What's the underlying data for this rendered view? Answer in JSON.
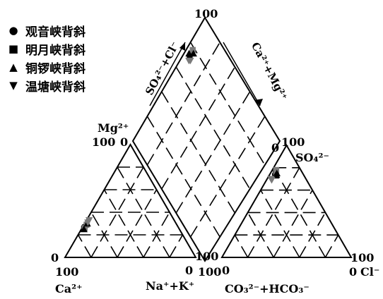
{
  "chart_data": {
    "type": "scatter",
    "chart_subtype": "piper-trilinear",
    "legend": {
      "placement": "top-left",
      "entries": [
        {
          "marker": "●",
          "label": "观音峡背斜"
        },
        {
          "marker": "■",
          "label": "明月峡背斜"
        },
        {
          "marker": "▲",
          "label": "铜锣峡背斜"
        },
        {
          "marker": "▼",
          "label": "温塘峡背斜"
        }
      ]
    },
    "triangles": {
      "cation": {
        "apex_label": "Mg²⁺",
        "left_label": "Ca²⁺",
        "right_label": "Na⁺+K⁺",
        "ticks": {
          "apex_100": "100",
          "apex_0": "0",
          "left_0": "0",
          "left_100": "100",
          "right_100": "100",
          "right_0": "0"
        }
      },
      "anion": {
        "apex_label": "SO₄²⁻",
        "left_label": "CO₃²⁻+HCO₃⁻",
        "right_label": "Cl⁻",
        "ticks": {
          "apex_100": "100",
          "apex_0": "0",
          "left_100": "100",
          "left_0": "0",
          "right_100": "100",
          "right_0": "0"
        }
      },
      "diamond": {
        "top_tick": "100",
        "upper_left_label": "SO₄²⁻+Cl⁻",
        "upper_right_label": "Ca²⁺+Mg²⁺"
      }
    },
    "series": [
      {
        "marker": "circle",
        "cation_mg_ca": [
          [
            28,
            70
          ],
          [
            27,
            72
          ]
        ],
        "anion_so4_cl": [
          [
            77,
            3
          ],
          [
            74,
            4
          ]
        ],
        "diamond_so4cl_camg": [
          [
            75,
            98
          ],
          [
            73,
            97
          ]
        ]
      },
      {
        "marker": "square",
        "cation_mg_ca": [
          [
            26,
            72
          ],
          [
            29,
            69
          ]
        ],
        "anion_so4_cl": [
          [
            76,
            4
          ],
          [
            78,
            3
          ]
        ],
        "diamond_so4cl_camg": [
          [
            76,
            97
          ],
          [
            78,
            98
          ]
        ]
      },
      {
        "marker": "triangle-up",
        "cation_mg_ca": [
          [
            25,
            73
          ],
          [
            30,
            68
          ]
        ],
        "anion_so4_cl": [
          [
            75,
            5
          ],
          [
            73,
            5
          ]
        ],
        "diamond_so4cl_camg": [
          [
            74,
            99
          ],
          [
            77,
            96
          ]
        ]
      },
      {
        "marker": "triangle-down",
        "cation_mg_ca": [
          [
            33,
            65
          ],
          [
            31,
            67
          ]
        ],
        "anion_so4_cl": [
          [
            69,
            4
          ],
          [
            70,
            3
          ]
        ],
        "diamond_so4cl_camg": [
          [
            72,
            95
          ],
          [
            71,
            96
          ]
        ]
      }
    ],
    "colors": {
      "marker": "#000000",
      "marker_gray": "#7a7a7a",
      "frame": "#000000"
    }
  }
}
